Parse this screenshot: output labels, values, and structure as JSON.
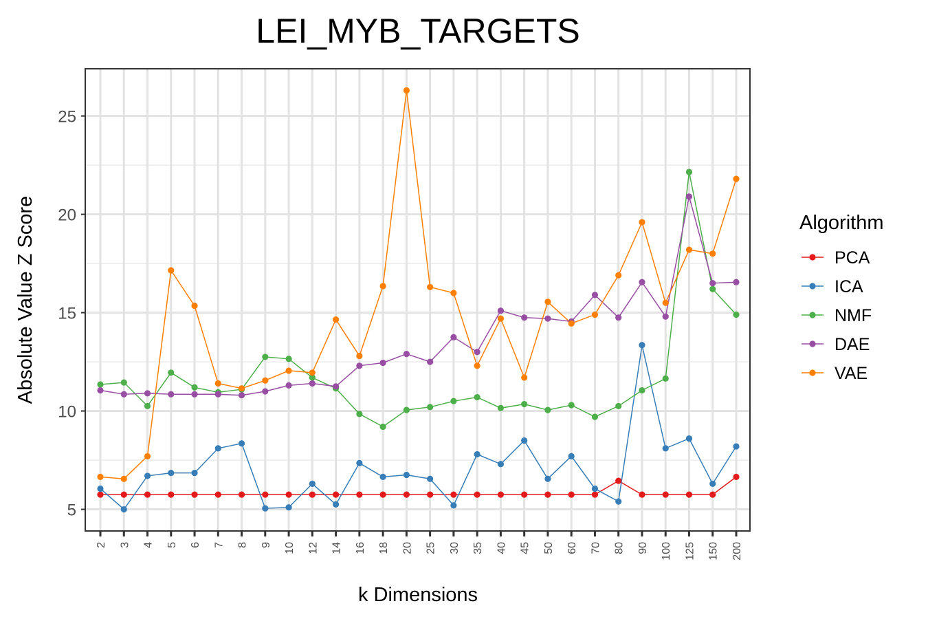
{
  "chart_data": {
    "type": "line",
    "title": "LEI_MYB_TARGETS",
    "xlabel": "k Dimensions",
    "ylabel": "Absolute Value Z Score",
    "ylim": [
      3.9,
      27.4
    ],
    "yticks": [
      5,
      10,
      15,
      20,
      25
    ],
    "grid": true,
    "legend": {
      "title": "Algorithm",
      "position": "right"
    },
    "categories": [
      "2",
      "3",
      "4",
      "5",
      "6",
      "7",
      "8",
      "9",
      "10",
      "12",
      "14",
      "16",
      "18",
      "20",
      "25",
      "30",
      "35",
      "40",
      "45",
      "50",
      "60",
      "70",
      "80",
      "90",
      "100",
      "125",
      "150",
      "200"
    ],
    "series": [
      {
        "name": "PCA",
        "color": "#e41a1c",
        "values": [
          5.75,
          5.75,
          5.75,
          5.75,
          5.75,
          5.75,
          5.75,
          5.75,
          5.75,
          5.75,
          5.75,
          5.75,
          5.75,
          5.75,
          5.75,
          5.75,
          5.75,
          5.75,
          5.75,
          5.75,
          5.75,
          5.75,
          6.45,
          5.75,
          5.75,
          5.75,
          5.75,
          6.65
        ]
      },
      {
        "name": "ICA",
        "color": "#377eb8",
        "values": [
          6.05,
          5.0,
          6.7,
          6.85,
          6.85,
          8.1,
          8.35,
          5.05,
          5.1,
          6.3,
          5.25,
          7.35,
          6.65,
          6.75,
          6.55,
          5.2,
          7.8,
          7.3,
          8.5,
          6.55,
          7.7,
          6.05,
          5.4,
          13.35,
          8.1,
          8.6,
          6.3,
          8.2
        ]
      },
      {
        "name": "NMF",
        "color": "#4daf4a",
        "values": [
          11.35,
          11.45,
          10.25,
          11.95,
          11.2,
          10.95,
          11.1,
          12.75,
          12.65,
          11.7,
          11.15,
          9.85,
          9.2,
          10.05,
          10.2,
          10.5,
          10.7,
          10.15,
          10.35,
          10.05,
          10.3,
          9.7,
          10.25,
          11.05,
          11.65,
          22.15,
          16.2,
          14.9
        ]
      },
      {
        "name": "DAE",
        "color": "#984ea3",
        "values": [
          11.05,
          10.85,
          10.9,
          10.85,
          10.85,
          10.85,
          10.8,
          11.0,
          11.3,
          11.4,
          11.25,
          12.3,
          12.45,
          12.9,
          12.5,
          13.75,
          13.0,
          15.1,
          14.75,
          14.7,
          14.55,
          15.9,
          14.75,
          16.55,
          14.8,
          20.9,
          16.5,
          16.55
        ]
      },
      {
        "name": "VAE",
        "color": "#ff7f00",
        "values": [
          6.65,
          6.55,
          7.7,
          17.15,
          15.35,
          11.4,
          11.15,
          11.55,
          12.05,
          11.95,
          14.65,
          12.8,
          16.35,
          26.3,
          16.3,
          16.0,
          12.3,
          14.7,
          11.7,
          15.55,
          14.45,
          14.9,
          16.9,
          19.6,
          15.5,
          18.2,
          18.0,
          21.8
        ]
      }
    ]
  }
}
